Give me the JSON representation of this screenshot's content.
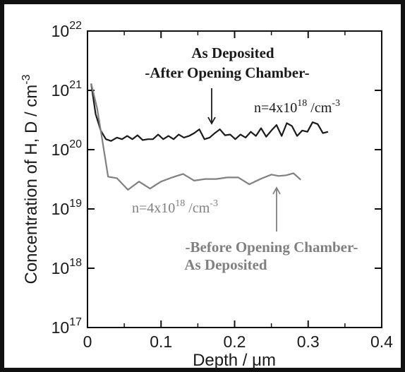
{
  "chart_data": {
    "type": "line",
    "xlabel": "Depth / μm",
    "ylabel": {
      "base": "Concentration of H, D / cm",
      "sup": "-3"
    },
    "x_ticks": [
      "0",
      "0.1",
      "0.2",
      "0.3",
      "0.4"
    ],
    "x_tick_values": [
      0,
      0.1,
      0.2,
      0.3,
      0.4
    ],
    "y_ticks": [
      {
        "base": "10",
        "exp": "22"
      },
      {
        "base": "10",
        "exp": "21"
      },
      {
        "base": "10",
        "exp": "20"
      },
      {
        "base": "10",
        "exp": "19"
      },
      {
        "base": "10",
        "exp": "18"
      },
      {
        "base": "10",
        "exp": "17"
      }
    ],
    "y_tick_exponents": [
      22,
      21,
      20,
      19,
      18,
      17
    ],
    "xlim": [
      0,
      0.4
    ],
    "ylim": [
      1e+17,
      1e+22
    ],
    "y_scale": "log",
    "grid": false,
    "colors": {
      "series_after": "#1a1a1a",
      "series_before": "#808080",
      "frame": "#111111"
    },
    "series": [
      {
        "key": "after",
        "color": "#1a1a1a",
        "x": [
          0.005,
          0.011,
          0.018,
          0.025,
          0.032,
          0.04,
          0.047,
          0.054,
          0.061,
          0.068,
          0.075,
          0.082,
          0.089,
          0.096,
          0.103,
          0.11,
          0.117,
          0.124,
          0.131,
          0.138,
          0.145,
          0.152,
          0.159,
          0.166,
          0.173,
          0.18,
          0.187,
          0.194,
          0.201,
          0.208,
          0.215,
          0.222,
          0.229,
          0.236,
          0.243,
          0.25,
          0.257,
          0.264,
          0.271,
          0.278,
          0.285,
          0.292,
          0.299,
          0.306,
          0.313,
          0.32,
          0.327
        ],
        "y": [
          1.3e+21,
          4e+20,
          2.1e+20,
          1.5e+20,
          1.4e+20,
          1.6e+20,
          1.5e+20,
          1.7e+20,
          1.5e+20,
          1.75e+20,
          1.45e+20,
          1.5e+20,
          1.5e+20,
          1.8e+20,
          1.5e+20,
          1.7e+20,
          1.5e+20,
          1.8e+20,
          1.6e+20,
          1.7e+20,
          1.9e+20,
          2.2e+20,
          1.5e+20,
          1.6e+20,
          1.9e+20,
          2.2e+20,
          1.75e+20,
          1.8e+20,
          1.5e+20,
          1.8e+20,
          1.6e+20,
          2e+20,
          1.7e+20,
          2.3e+20,
          1.65e+20,
          2.1e+20,
          2.6e+20,
          1.7e+20,
          2.8e+20,
          2.5e+20,
          1.7e+20,
          2.1e+20,
          2e+20,
          2.9e+20,
          2.7e+20,
          1.9e+20,
          2e+20
        ]
      },
      {
        "key": "before",
        "color": "#808080",
        "x": [
          0.005,
          0.013,
          0.02,
          0.028,
          0.04,
          0.055,
          0.07,
          0.085,
          0.1,
          0.115,
          0.13,
          0.145,
          0.16,
          0.175,
          0.19,
          0.205,
          0.22,
          0.235,
          0.25,
          0.26,
          0.27,
          0.28,
          0.29
        ],
        "y": [
          1.3e+21,
          5e+20,
          1.5e+20,
          3.5e+19,
          3.3e+19,
          2.1e+19,
          2.9e+19,
          2.2e+19,
          2.9e+19,
          3.4e+19,
          3.9e+19,
          3e+19,
          3.2e+19,
          3.2e+19,
          3.4e+19,
          3.4e+19,
          2.6e+19,
          3.2e+19,
          3.8e+19,
          3.6e+19,
          3.7e+19,
          4e+19,
          3.1e+19
        ]
      }
    ],
    "annotations": {
      "after_title_line1": "As Deposited",
      "after_title_line2": "-After Opening Chamber-",
      "after_n": {
        "prefix": "n=4x10",
        "exp": "18",
        "suffix": " /cm",
        "sup": "-3"
      },
      "before_n": {
        "prefix": "n=4x10",
        "exp": "18",
        "suffix": " /cm",
        "sup": "-3"
      },
      "before_title_line1": "-Before Opening Chamber-",
      "before_title_line2": "As Deposited"
    }
  }
}
